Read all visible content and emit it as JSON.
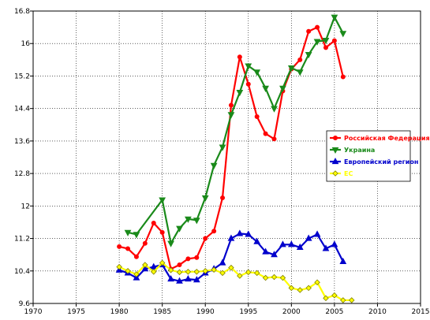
{
  "chart_data": {
    "type": "line",
    "title": "",
    "xlabel": "",
    "ylabel": "",
    "xlim": [
      1970,
      2015
    ],
    "ylim": [
      9.6,
      16.8
    ],
    "xticks": [
      1970,
      1975,
      1980,
      1985,
      1990,
      1995,
      2000,
      2005,
      2010,
      2015
    ],
    "yticks": [
      9.6,
      10.4,
      11.2,
      12,
      12.8,
      13.6,
      14.4,
      15.2,
      16,
      16.8
    ],
    "xtick_labels": [
      "1970",
      "1975",
      "1980",
      "1985",
      "1990",
      "1995",
      "2000",
      "2005",
      "2010",
      "2015"
    ],
    "ytick_labels": [
      "9.6",
      "10.4",
      "11.2",
      "12",
      "12.8",
      "13.6",
      "14.4",
      "15.2",
      "16",
      "16.8"
    ],
    "grid": true,
    "legend_position": "right",
    "series": [
      {
        "name": "Российская Федерация",
        "color": "#ff0000",
        "marker": "circle",
        "points": [
          [
            1980,
            11.0
          ],
          [
            1981,
            10.95
          ],
          [
            1982,
            10.75
          ],
          [
            1983,
            11.08
          ],
          [
            1984,
            11.58
          ],
          [
            1985,
            11.35
          ],
          [
            1986,
            10.45
          ],
          [
            1987,
            10.55
          ],
          [
            1988,
            10.7
          ],
          [
            1989,
            10.73
          ],
          [
            1990,
            11.2
          ],
          [
            1991,
            11.38
          ],
          [
            1992,
            12.2
          ],
          [
            1993,
            14.48
          ],
          [
            1994,
            15.67
          ],
          [
            1995,
            15.0
          ],
          [
            1996,
            14.2
          ],
          [
            1997,
            13.78
          ],
          [
            1998,
            13.65
          ],
          [
            1999,
            14.83
          ],
          [
            2000,
            15.37
          ],
          [
            2001,
            15.6
          ],
          [
            2002,
            16.3
          ],
          [
            2003,
            16.4
          ],
          [
            2004,
            15.9
          ],
          [
            2005,
            16.07
          ],
          [
            2006,
            15.18
          ]
        ]
      },
      {
        "name": "Украина",
        "color": "#1a8a1a",
        "marker": "triangle-down",
        "points": [
          [
            1981,
            11.35
          ],
          [
            1982,
            11.3
          ],
          [
            1985,
            12.15
          ],
          [
            1986,
            11.08
          ],
          [
            1987,
            11.45
          ],
          [
            1988,
            11.68
          ],
          [
            1989,
            11.65
          ],
          [
            1990,
            12.2
          ],
          [
            1991,
            13.0
          ],
          [
            1992,
            13.45
          ],
          [
            1993,
            14.25
          ],
          [
            1994,
            14.8
          ],
          [
            1995,
            15.45
          ],
          [
            1996,
            15.3
          ],
          [
            1997,
            14.9
          ],
          [
            1998,
            14.4
          ],
          [
            1999,
            14.9
          ],
          [
            2000,
            15.4
          ],
          [
            2001,
            15.3
          ],
          [
            2002,
            15.73
          ],
          [
            2003,
            16.05
          ],
          [
            2004,
            16.08
          ],
          [
            2005,
            16.65
          ],
          [
            2006,
            16.25
          ]
        ]
      },
      {
        "name": "Европейский регион",
        "color": "#0000cc",
        "marker": "triangle-up",
        "points": [
          [
            1980,
            10.42
          ],
          [
            1981,
            10.35
          ],
          [
            1982,
            10.23
          ],
          [
            1983,
            10.45
          ],
          [
            1984,
            10.5
          ],
          [
            1985,
            10.55
          ],
          [
            1986,
            10.2
          ],
          [
            1987,
            10.15
          ],
          [
            1988,
            10.2
          ],
          [
            1989,
            10.18
          ],
          [
            1990,
            10.35
          ],
          [
            1991,
            10.45
          ],
          [
            1992,
            10.6
          ],
          [
            1993,
            11.2
          ],
          [
            1994,
            11.32
          ],
          [
            1995,
            11.3
          ],
          [
            1996,
            11.12
          ],
          [
            1997,
            10.87
          ],
          [
            1998,
            10.8
          ],
          [
            1999,
            11.05
          ],
          [
            2000,
            11.05
          ],
          [
            2001,
            10.98
          ],
          [
            2002,
            11.2
          ],
          [
            2003,
            11.3
          ],
          [
            2004,
            10.95
          ],
          [
            2005,
            11.05
          ],
          [
            2006,
            10.63
          ]
        ]
      },
      {
        "name": "ЕС",
        "color": "#ffff00",
        "marker": "diamond",
        "points": [
          [
            1980,
            10.5
          ],
          [
            1981,
            10.4
          ],
          [
            1982,
            10.32
          ],
          [
            1983,
            10.55
          ],
          [
            1984,
            10.38
          ],
          [
            1985,
            10.6
          ],
          [
            1986,
            10.42
          ],
          [
            1987,
            10.37
          ],
          [
            1988,
            10.38
          ],
          [
            1989,
            10.38
          ],
          [
            1990,
            10.4
          ],
          [
            1991,
            10.43
          ],
          [
            1992,
            10.35
          ],
          [
            1993,
            10.48
          ],
          [
            1994,
            10.28
          ],
          [
            1995,
            10.37
          ],
          [
            1996,
            10.35
          ],
          [
            1997,
            10.23
          ],
          [
            1998,
            10.25
          ],
          [
            1999,
            10.23
          ],
          [
            2000,
            9.98
          ],
          [
            2001,
            9.93
          ],
          [
            2002,
            9.98
          ],
          [
            2003,
            10.12
          ],
          [
            2004,
            9.73
          ],
          [
            2005,
            9.8
          ],
          [
            2006,
            9.68
          ],
          [
            2007,
            9.68
          ]
        ]
      }
    ]
  }
}
